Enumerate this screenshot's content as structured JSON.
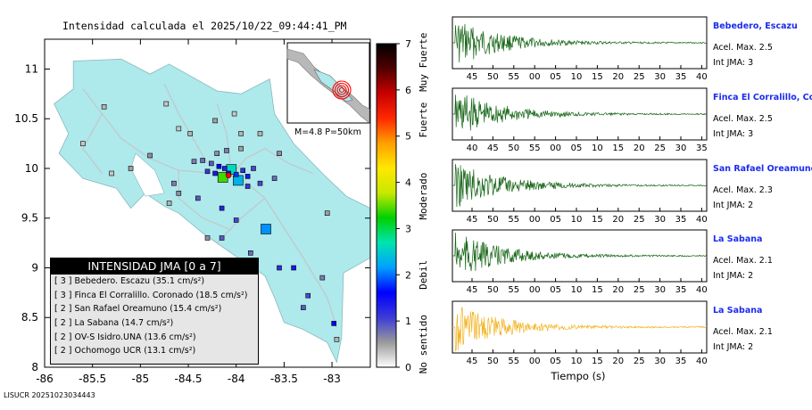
{
  "header": {
    "title": "Intensidad calculada el 2025/10/22_09:44:41_PM"
  },
  "footer": {
    "id": "LISUCR 20251023034443"
  },
  "map": {
    "xticks": [
      "-86",
      "-85.5",
      "-85",
      "-84.5",
      "-84",
      "-83.5",
      "-83"
    ],
    "yticks": [
      "11",
      "10.5",
      "10",
      "9.5",
      "9",
      "8.5",
      "8"
    ],
    "xlim": [
      -86,
      -82.6
    ],
    "ylim": [
      8,
      11.3
    ],
    "land_color": "#aee9ec",
    "ocean_color": "#ffffff",
    "inset": {
      "label": "M=4.8  P=50km"
    },
    "legend": {
      "title": "INTENSIDAD JMA [0 a 7]",
      "rows": [
        {
          "int": "[ 3 ]",
          "text": "Bebedero. Escazu (35.1 cm/s²)"
        },
        {
          "int": "[ 3 ]",
          "text": "Finca El Corralillo. Coronado (18.5 cm/s²)"
        },
        {
          "int": "[ 2 ]",
          "text": "San Rafael Oreamuno (15.4 cm/s²)"
        },
        {
          "int": "[ 2 ]",
          "text": "La Sabana (14.7 cm/s²)"
        },
        {
          "int": "[ 2 ]",
          "text": "OV-S Isidro.UNA (13.6 cm/s²)"
        },
        {
          "int": "[ 2 ]",
          "text": "Ochomogo UCR (13.1 cm/s²)"
        }
      ]
    },
    "stations": [
      {
        "lon": -84.14,
        "lat": 9.91,
        "intensity": 3.4,
        "big": true
      },
      {
        "lon": -84.05,
        "lat": 9.99,
        "intensity": 2.6,
        "big": true
      },
      {
        "lon": -83.98,
        "lat": 9.88,
        "intensity": 2.3,
        "big": true
      },
      {
        "lon": -83.69,
        "lat": 9.39,
        "intensity": 2.1,
        "big": true
      },
      {
        "lon": -84.18,
        "lat": 10.02,
        "intensity": 1.6
      },
      {
        "lon": -84.12,
        "lat": 10.0,
        "intensity": 1.3
      },
      {
        "lon": -84.22,
        "lat": 9.95,
        "intensity": 1.4
      },
      {
        "lon": -84.08,
        "lat": 9.95,
        "intensity": 1.5
      },
      {
        "lon": -84.0,
        "lat": 9.94,
        "intensity": 1.8
      },
      {
        "lon": -83.93,
        "lat": 9.98,
        "intensity": 1.2
      },
      {
        "lon": -84.26,
        "lat": 10.05,
        "intensity": 0.9
      },
      {
        "lon": -84.3,
        "lat": 9.97,
        "intensity": 1.1
      },
      {
        "lon": -83.88,
        "lat": 9.92,
        "intensity": 1.4
      },
      {
        "lon": -83.82,
        "lat": 10.0,
        "intensity": 1.0
      },
      {
        "lon": -84.35,
        "lat": 10.08,
        "intensity": 0.8
      },
      {
        "lon": -84.44,
        "lat": 10.07,
        "intensity": 0.7
      },
      {
        "lon": -84.2,
        "lat": 10.15,
        "intensity": 0.6
      },
      {
        "lon": -84.1,
        "lat": 10.18,
        "intensity": 0.7
      },
      {
        "lon": -83.95,
        "lat": 10.2,
        "intensity": 0.5
      },
      {
        "lon": -84.48,
        "lat": 10.35,
        "intensity": 0.4
      },
      {
        "lon": -84.6,
        "lat": 10.4,
        "intensity": 0.3
      },
      {
        "lon": -84.73,
        "lat": 10.65,
        "intensity": 0.3
      },
      {
        "lon": -84.22,
        "lat": 10.48,
        "intensity": 0.5
      },
      {
        "lon": -83.75,
        "lat": 10.35,
        "intensity": 0.4
      },
      {
        "lon": -84.02,
        "lat": 10.55,
        "intensity": 0.3
      },
      {
        "lon": -84.65,
        "lat": 9.85,
        "intensity": 0.7
      },
      {
        "lon": -84.6,
        "lat": 9.75,
        "intensity": 0.6
      },
      {
        "lon": -84.4,
        "lat": 9.7,
        "intensity": 0.9
      },
      {
        "lon": -83.88,
        "lat": 9.82,
        "intensity": 1.1
      },
      {
        "lon": -83.75,
        "lat": 9.85,
        "intensity": 1.0
      },
      {
        "lon": -83.6,
        "lat": 9.9,
        "intensity": 0.8
      },
      {
        "lon": -84.15,
        "lat": 9.6,
        "intensity": 1.3
      },
      {
        "lon": -84.0,
        "lat": 9.48,
        "intensity": 1.0
      },
      {
        "lon": -84.7,
        "lat": 9.65,
        "intensity": 0.4
      },
      {
        "lon": -84.3,
        "lat": 9.3,
        "intensity": 0.6
      },
      {
        "lon": -84.15,
        "lat": 9.3,
        "intensity": 0.9
      },
      {
        "lon": -83.85,
        "lat": 9.15,
        "intensity": 0.8
      },
      {
        "lon": -83.4,
        "lat": 9.0,
        "intensity": 1.4
      },
      {
        "lon": -83.55,
        "lat": 9.0,
        "intensity": 1.2
      },
      {
        "lon": -83.25,
        "lat": 8.72,
        "intensity": 1.0
      },
      {
        "lon": -83.3,
        "lat": 8.6,
        "intensity": 0.9
      },
      {
        "lon": -82.98,
        "lat": 8.44,
        "intensity": 1.6
      },
      {
        "lon": -83.1,
        "lat": 8.9,
        "intensity": 0.7
      },
      {
        "lon": -82.95,
        "lat": 8.28,
        "intensity": 0.4
      },
      {
        "lon": -85.38,
        "lat": 10.62,
        "intensity": 0.4
      },
      {
        "lon": -85.6,
        "lat": 10.25,
        "intensity": 0.3
      },
      {
        "lon": -85.1,
        "lat": 10.0,
        "intensity": 0.5
      },
      {
        "lon": -85.3,
        "lat": 9.95,
        "intensity": 0.3
      },
      {
        "lon": -84.9,
        "lat": 10.13,
        "intensity": 0.6
      },
      {
        "lon": -83.95,
        "lat": 10.35,
        "intensity": 0.4
      },
      {
        "lon": -83.55,
        "lat": 10.15,
        "intensity": 0.6
      },
      {
        "lon": -83.05,
        "lat": 9.55,
        "intensity": 0.5
      }
    ],
    "epicenter": {
      "lon": -84.08,
      "lat": 9.93
    }
  },
  "colorbar": {
    "ticks": [
      "0",
      "1",
      "2",
      "3",
      "4",
      "5",
      "6",
      "7"
    ],
    "labels": [
      "No sentido",
      "Debil",
      "Moderado",
      "Fuerte",
      "Muy Fuerte"
    ],
    "stops": [
      "#ffffff",
      "#9a9a9a",
      "#3b3bd8",
      "#0000ff",
      "#00a0ff",
      "#00e4b0",
      "#00d000",
      "#c8e800",
      "#ffe800",
      "#ffa000",
      "#ff2800",
      "#c80000",
      "#500000",
      "#000000"
    ]
  },
  "waveforms": {
    "xlabel": "Tiempo (s)",
    "panels": [
      {
        "name": "Bebedero, Escazu",
        "accel": "Acel. Max. 2.5",
        "jma": "Int JMA: 3",
        "color": "#146414",
        "ticks": [
          "45",
          "50",
          "55",
          "00",
          "05",
          "10",
          "15",
          "20",
          "25",
          "30",
          "35",
          "40"
        ]
      },
      {
        "name": "Finca El Corralillo, Coro",
        "accel": "Acel. Max. 2.5",
        "jma": "Int JMA: 3",
        "color": "#146414",
        "ticks": [
          "40",
          "45",
          "50",
          "55",
          "00",
          "05",
          "10",
          "15",
          "20",
          "25",
          "30",
          "35"
        ]
      },
      {
        "name": "San Rafael Oreamuno",
        "accel": "Acel. Max. 2.3",
        "jma": "Int JMA: 2",
        "color": "#146414",
        "ticks": [
          "45",
          "50",
          "55",
          "00",
          "05",
          "10",
          "15",
          "20",
          "25",
          "30",
          "35",
          "40"
        ]
      },
      {
        "name": "La Sabana",
        "accel": "Acel. Max. 2.1",
        "jma": "Int JMA: 2",
        "color": "#146414",
        "ticks": [
          "45",
          "50",
          "55",
          "00",
          "05",
          "10",
          "15",
          "20",
          "25",
          "30",
          "35",
          "40"
        ]
      },
      {
        "name": "La Sabana",
        "accel": "Acel. Max. 2.1",
        "jma": "Int JMA: 2",
        "color": "#f2b21e",
        "ticks": [
          "45",
          "50",
          "55",
          "00",
          "05",
          "10",
          "15",
          "20",
          "25",
          "30",
          "35",
          "40"
        ]
      }
    ]
  }
}
